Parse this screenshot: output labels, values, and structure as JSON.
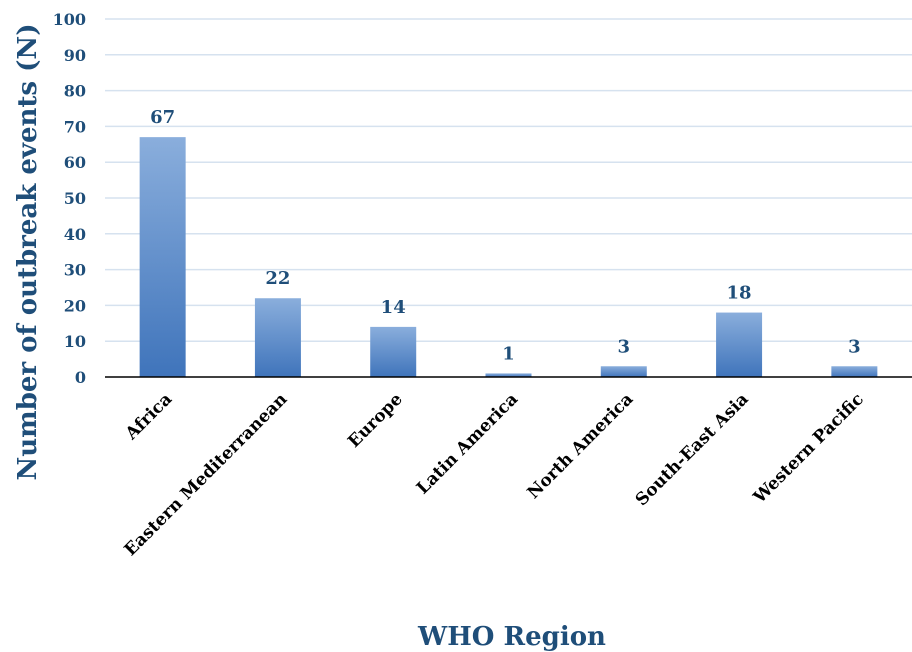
{
  "colors": {
    "accent": "#1f4e79",
    "bar_top": "#8aaedc",
    "bar_bottom": "#3f74bb",
    "grid": "#d6e2ef",
    "axis": "#000000"
  },
  "chart_data": {
    "type": "bar",
    "xlabel": "WHO Region",
    "ylabel": "Number of outbreak events (N)",
    "ylim": [
      0,
      100
    ],
    "yticks": [
      "0",
      "10",
      "20",
      "30",
      "40",
      "50",
      "60",
      "70",
      "80",
      "90",
      "100"
    ],
    "categories": [
      "Africa",
      "Eastern Mediterranean",
      "Europe",
      "Latin America",
      "North America",
      "South-East Asia",
      "Western Pacific"
    ],
    "values": [
      67,
      22,
      14,
      1,
      3,
      18,
      3
    ],
    "data_labels": [
      "67",
      "22",
      "14",
      "1",
      "3",
      "18",
      "3"
    ],
    "grid": true,
    "legend": "none"
  }
}
